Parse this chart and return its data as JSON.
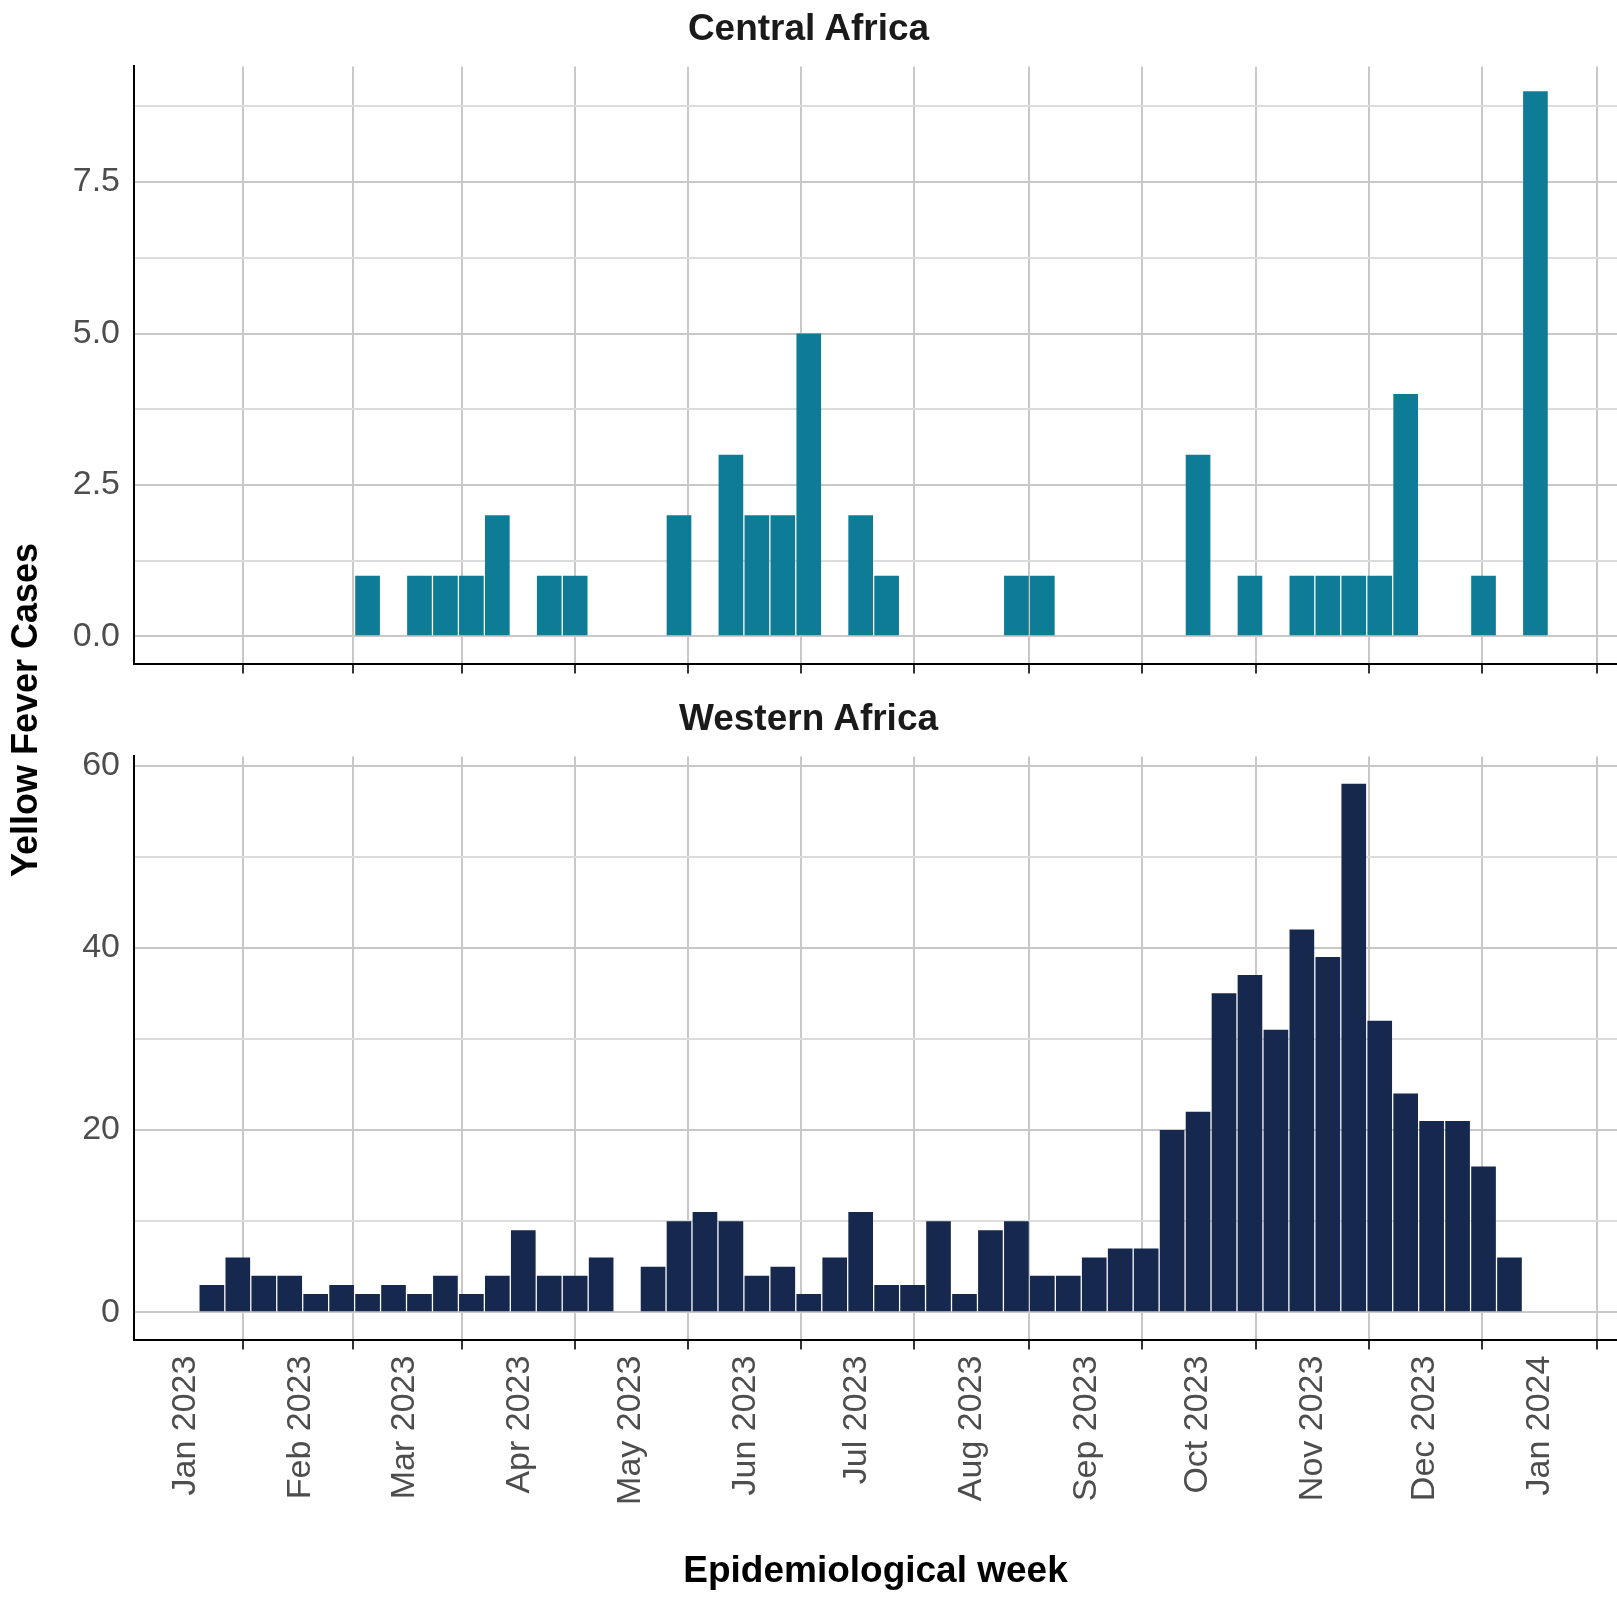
{
  "chart_data": [
    {
      "type": "bar",
      "title": "Central Africa",
      "ylabel": "Yellow Fever Cases",
      "color": "#0e7c96",
      "x": [
        "2023-02-19",
        "2023-03-05",
        "2023-03-12",
        "2023-03-19",
        "2023-03-26",
        "2023-04-09",
        "2023-04-16",
        "2023-05-14",
        "2023-05-28",
        "2023-06-04",
        "2023-06-11",
        "2023-06-18",
        "2023-07-02",
        "2023-07-09",
        "2023-08-13",
        "2023-08-20",
        "2023-10-01",
        "2023-10-15",
        "2023-10-29",
        "2023-11-05",
        "2023-11-12",
        "2023-11-19",
        "2023-11-26",
        "2023-12-17",
        "2023-12-31"
      ],
      "values": [
        1,
        1,
        1,
        1,
        2,
        1,
        1,
        2,
        3,
        2,
        2,
        5,
        2,
        1,
        1,
        1,
        3,
        1,
        1,
        1,
        1,
        1,
        4,
        1,
        9
      ],
      "xlim": [
        "2022-12-18",
        "2024-01-22"
      ],
      "xticks": [
        {
          "value": "2023-01-01",
          "label": null
        },
        {
          "value": "2023-02-01",
          "label": null
        },
        {
          "value": "2023-03-01",
          "label": null
        },
        {
          "value": "2023-04-01",
          "label": null
        },
        {
          "value": "2023-05-01",
          "label": null
        },
        {
          "value": "2023-06-01",
          "label": null
        },
        {
          "value": "2023-07-01",
          "label": null
        },
        {
          "value": "2023-08-01",
          "label": null
        },
        {
          "value": "2023-09-01",
          "label": null
        },
        {
          "value": "2023-10-01",
          "label": null
        },
        {
          "value": "2023-11-01",
          "label": null
        },
        {
          "value": "2023-12-01",
          "label": null
        },
        {
          "value": "2024-01-01",
          "label": null
        }
      ],
      "ylim": [
        -0.45,
        9.41
      ],
      "yticks": [
        {
          "value": 0,
          "label": "0.0"
        },
        {
          "value": 1.25,
          "label": null
        },
        {
          "value": 2.5,
          "label": "2.5"
        },
        {
          "value": 3.75,
          "label": null
        },
        {
          "value": 5,
          "label": "5.0"
        },
        {
          "value": 6.25,
          "label": null
        },
        {
          "value": 7.5,
          "label": "7.5"
        },
        {
          "value": 8.75,
          "label": null
        }
      ],
      "grid": true,
      "tick_labels": "y"
    },
    {
      "type": "bar",
      "title": "Western Africa",
      "xlabel": "Epidemiological week",
      "color": "#17284f",
      "x": [
        "2023-01-08",
        "2023-01-15",
        "2023-01-22",
        "2023-01-29",
        "2023-02-05",
        "2023-02-12",
        "2023-02-19",
        "2023-02-26",
        "2023-03-05",
        "2023-03-12",
        "2023-03-19",
        "2023-03-26",
        "2023-04-02",
        "2023-04-09",
        "2023-04-16",
        "2023-04-23",
        "2023-04-30",
        "2023-05-07",
        "2023-05-14",
        "2023-05-21",
        "2023-05-28",
        "2023-06-04",
        "2023-06-11",
        "2023-06-18",
        "2023-06-25",
        "2023-07-02",
        "2023-07-09",
        "2023-07-16",
        "2023-07-23",
        "2023-07-30",
        "2023-08-06",
        "2023-08-13",
        "2023-08-20",
        "2023-08-27",
        "2023-09-03",
        "2023-09-10",
        "2023-09-17",
        "2023-09-24",
        "2023-10-01",
        "2023-10-08",
        "2023-10-15",
        "2023-10-22",
        "2023-10-29",
        "2023-11-05",
        "2023-11-12",
        "2023-11-19",
        "2023-11-26",
        "2023-12-03",
        "2023-12-10",
        "2023-12-17",
        "2023-12-24"
      ],
      "values": [
        3,
        6,
        4,
        4,
        2,
        3,
        2,
        3,
        2,
        4,
        2,
        4,
        9,
        4,
        4,
        6,
        null,
        5,
        10,
        11,
        10,
        4,
        5,
        2,
        6,
        11,
        3,
        3,
        10,
        2,
        9,
        10,
        4,
        4,
        6,
        7,
        7,
        20,
        22,
        35,
        37,
        31,
        42,
        39,
        58,
        32,
        24,
        21,
        21,
        16,
        6
      ],
      "xlim": [
        "2022-12-18",
        "2024-01-22"
      ],
      "xticks": [
        {
          "value": "2023-01-01",
          "label": "Jan 2023"
        },
        {
          "value": "2023-02-01",
          "label": "Feb 2023"
        },
        {
          "value": "2023-03-01",
          "label": "Mar 2023"
        },
        {
          "value": "2023-04-01",
          "label": "Apr 2023"
        },
        {
          "value": "2023-05-01",
          "label": "May 2023"
        },
        {
          "value": "2023-06-01",
          "label": "Jun 2023"
        },
        {
          "value": "2023-07-01",
          "label": "Jul 2023"
        },
        {
          "value": "2023-08-01",
          "label": "Aug 2023"
        },
        {
          "value": "2023-09-01",
          "label": "Sep 2023"
        },
        {
          "value": "2023-10-01",
          "label": "Oct 2023"
        },
        {
          "value": "2023-11-01",
          "label": "Nov 2023"
        },
        {
          "value": "2023-12-01",
          "label": "Dec 2023"
        },
        {
          "value": "2024-01-01",
          "label": "Jan 2024"
        }
      ],
      "ylim": [
        -3,
        61
      ],
      "yticks": [
        0,
        {
          "value": 10,
          "label": null
        },
        20,
        {
          "value": 30,
          "label": null
        },
        40,
        {
          "value": 50,
          "label": null
        },
        60
      ],
      "grid": true
    }
  ]
}
